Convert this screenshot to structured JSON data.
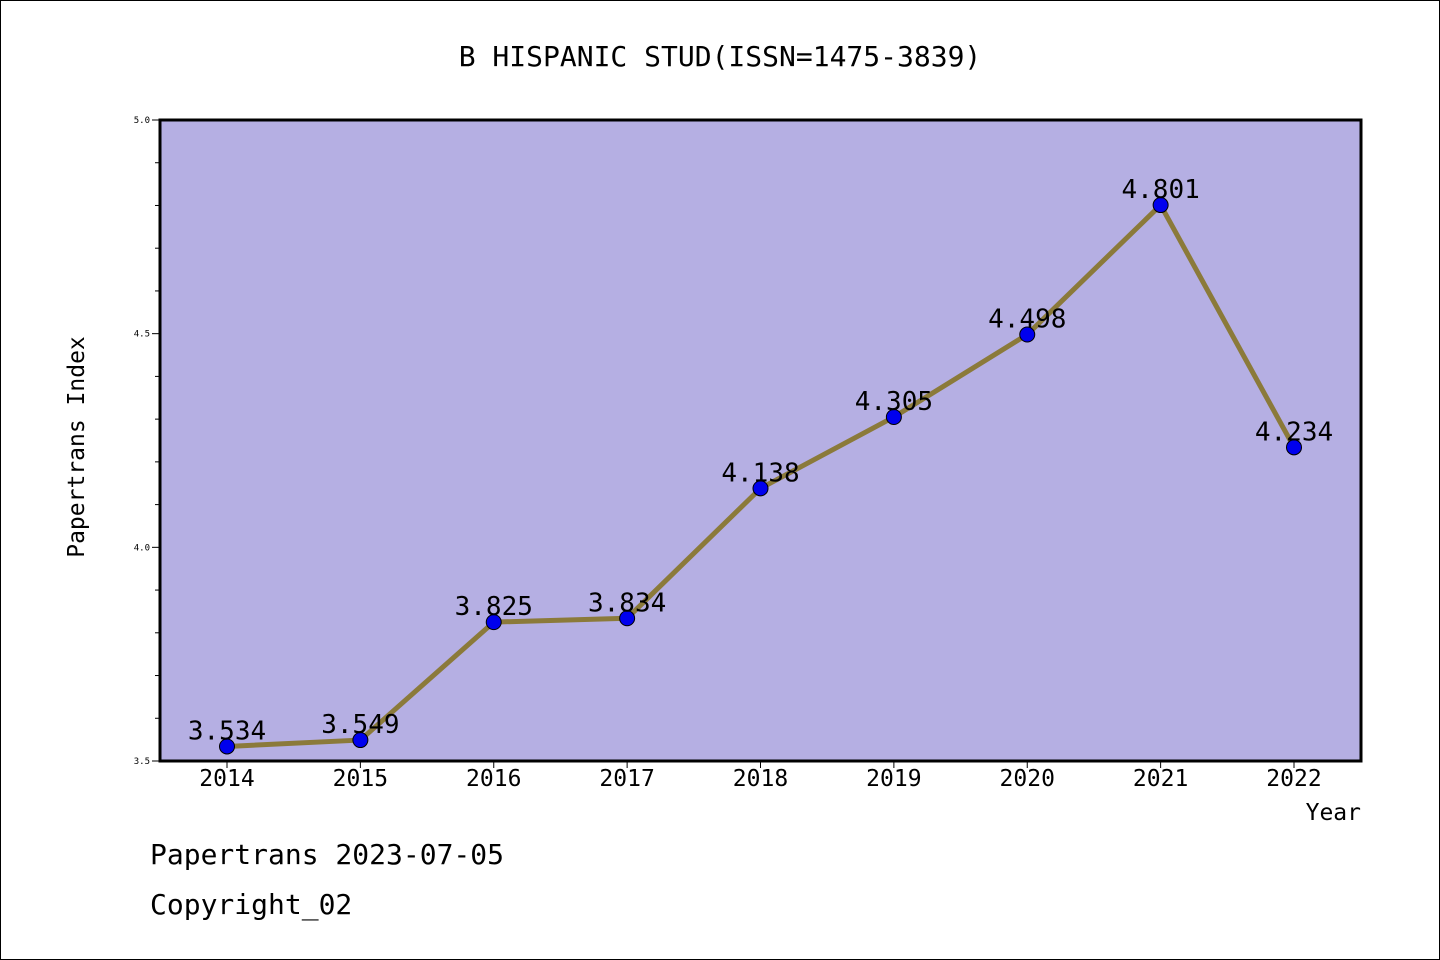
{
  "chart_data": {
    "type": "line",
    "title": "B HISPANIC STUD(ISSN=1475-3839)",
    "xlabel": "Year",
    "ylabel": "Papertrans Index",
    "ylim": [
      3.5,
      5.0
    ],
    "y_ticks": [
      "3.5",
      "4.0",
      "4.5",
      "5.0"
    ],
    "categories": [
      "2014",
      "2015",
      "2016",
      "2017",
      "2018",
      "2019",
      "2020",
      "2021",
      "2022"
    ],
    "series": [
      {
        "values": [
          3.534,
          3.549,
          3.825,
          3.834,
          4.138,
          4.305,
          4.498,
          4.801,
          4.234
        ],
        "labels": [
          "3.534",
          "3.549",
          "3.825",
          "3.834",
          "4.138",
          "4.305",
          "4.498",
          "4.801",
          "4.234"
        ]
      }
    ],
    "grid": false,
    "plot_background": "#b5afe3",
    "line_color": "#8b7a3a",
    "marker_color": "#0000ee"
  },
  "footer": {
    "line1": "Papertrans 2023-07-05",
    "line2": "Copyright_02"
  }
}
